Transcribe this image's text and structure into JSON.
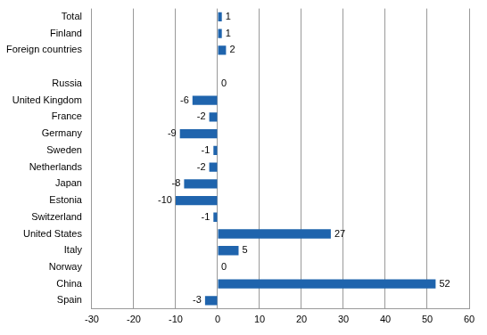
{
  "chart_data": {
    "type": "bar",
    "orientation": "horizontal",
    "categories": [
      "Total",
      "Finland",
      "Foreign countries",
      null,
      "Russia",
      "United Kingdom",
      "France",
      "Germany",
      "Sweden",
      "Netherlands",
      "Japan",
      "Estonia",
      "Switzerland",
      "United States",
      "Italy",
      "Norway",
      "China",
      "Spain"
    ],
    "values": [
      1,
      1,
      2,
      null,
      0,
      -6,
      -2,
      -9,
      -1,
      -2,
      -8,
      -10,
      -1,
      27,
      5,
      0,
      52,
      -3
    ],
    "color": "#1f64ad",
    "xlim": [
      -30,
      60
    ],
    "xticks": [
      -30,
      -20,
      -10,
      0,
      10,
      20,
      30,
      40,
      50,
      60
    ],
    "grid": true,
    "data_labels": true
  }
}
